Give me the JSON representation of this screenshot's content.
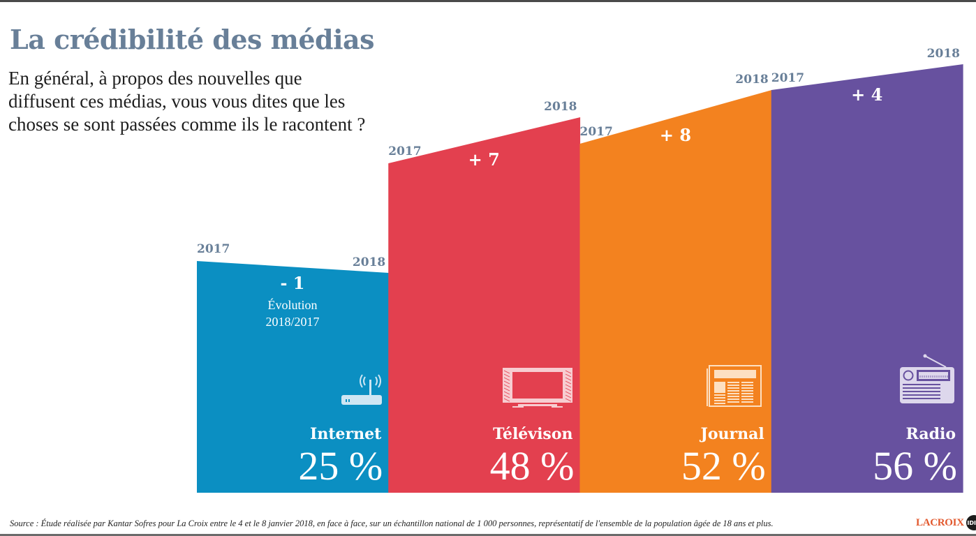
{
  "title": "La crédibilité des médias",
  "question": "En général, à propos des nouvelles que diffusent ces médias, vous vous dites que les choses se sont passées comme ils le racontent ?",
  "source": "Source : Étude réalisée par Kantar Sofres pour La Croix entre le 4 et le 8 janvier 2018, en face à face, sur un échantillon national de 1 000 personnes, représentatif de l'ensemble de la population âgée de 18 ans et plus.",
  "logo": {
    "text": "LACROIX",
    "badge": "IDIX"
  },
  "colors": {
    "title": "#687f98",
    "year_labels": "#687f98",
    "internet": "#0b8fc2",
    "television": "#e3404f",
    "journal": "#f3821f",
    "radio": "#67519f"
  },
  "chart_data": {
    "type": "bar",
    "title": "La crédibilité des médias",
    "subtitle": "En général, à propos des nouvelles que diffusent ces médias, vous vous dites que les choses se sont passées comme ils le racontent ?",
    "xlabel": "",
    "ylabel": "",
    "categories": [
      "Internet",
      "Télévison",
      "Journal",
      "Radio"
    ],
    "year_labels": {
      "start": "2017",
      "end": "2018"
    },
    "series": [
      {
        "name": "2017",
        "values": [
          26,
          41,
          44,
          52
        ]
      },
      {
        "name": "2018",
        "values": [
          25,
          48,
          52,
          56
        ]
      }
    ],
    "value_labels": [
      "25 %",
      "48 %",
      "52 %",
      "56 %"
    ],
    "evolution_labels": [
      "- 1",
      "+ 7",
      "+ 8",
      "+ 4"
    ],
    "evolution_caption": [
      "Évolution",
      "2018/2017"
    ],
    "icons": [
      "router-icon",
      "television-icon",
      "newspaper-icon",
      "radio-icon"
    ],
    "grid": false,
    "legend": "none"
  }
}
